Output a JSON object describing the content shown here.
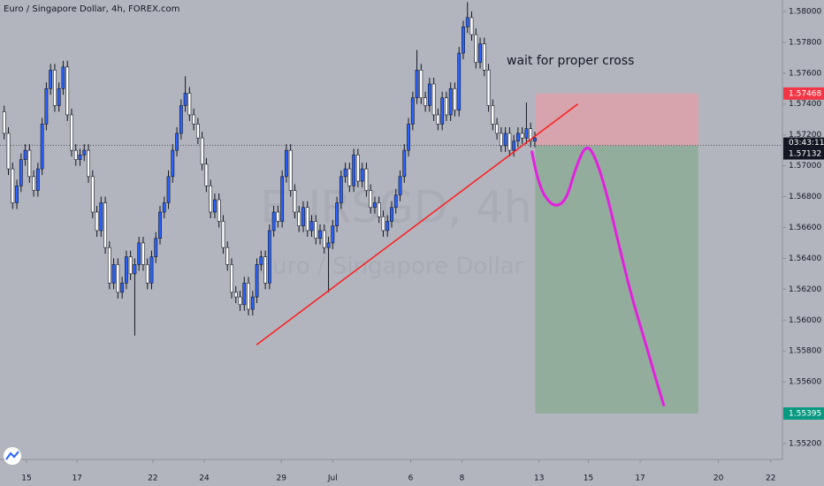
{
  "chart_data": {
    "type": "candlestick",
    "title": "Euro / Singapore Dollar, 4h, FOREX.com",
    "watermark": "EURSGD, 4h",
    "watermark_subtitle": "Euro / Singapore Dollar",
    "annotation": "wait for proper cross",
    "countdown": "03:43:11",
    "up_color": "#2962ff",
    "down_color": "#ffffff",
    "xlim": [
      -1,
      185
    ],
    "ylim": [
      1.55097,
      1.58074
    ],
    "xticks": [
      {
        "value": 5.3,
        "label": "15"
      },
      {
        "value": 17.3,
        "label": "17"
      },
      {
        "value": 35.3,
        "label": "22"
      },
      {
        "value": 47.5,
        "label": "24"
      },
      {
        "value": 65.8,
        "label": "29"
      },
      {
        "value": 78,
        "label": "Jul"
      },
      {
        "value": 96.5,
        "label": "6"
      },
      {
        "value": 108.7,
        "label": "8"
      },
      {
        "value": 127,
        "label": "13"
      },
      {
        "value": 138.7,
        "label": "15"
      },
      {
        "value": 151,
        "label": "17"
      },
      {
        "value": 169.6,
        "label": "20"
      },
      {
        "value": 182,
        "label": "22"
      }
    ],
    "yticks": [
      {
        "value": 1.552,
        "label": "1.55200"
      },
      {
        "value": 1.554,
        "label": "1.55400"
      },
      {
        "value": 1.556,
        "label": "1.55600"
      },
      {
        "value": 1.558,
        "label": "1.55800"
      },
      {
        "value": 1.56,
        "label": "1.56000"
      },
      {
        "value": 1.562,
        "label": "1.56200"
      },
      {
        "value": 1.564,
        "label": "1.56400"
      },
      {
        "value": 1.566,
        "label": "1.56600"
      },
      {
        "value": 1.568,
        "label": "1.56800"
      },
      {
        "value": 1.57,
        "label": "1.57000"
      },
      {
        "value": 1.572,
        "label": "1.57200"
      },
      {
        "value": 1.574,
        "label": "1.57400"
      },
      {
        "value": 1.576,
        "label": "1.57600"
      },
      {
        "value": 1.578,
        "label": "1.57800"
      },
      {
        "value": 1.58,
        "label": "1.58000"
      }
    ],
    "open": [
      1.5735,
      1.5721,
      1.5698,
      1.5676,
      1.5687,
      1.5704,
      1.571,
      1.5693,
      1.5684,
      1.5698,
      1.5727,
      1.575,
      1.5762,
      1.5739,
      1.575,
      1.5764,
      1.5733,
      1.571,
      1.5704,
      1.5707,
      1.571,
      1.5693,
      1.567,
      1.5658,
      1.5676,
      1.5647,
      1.5624,
      1.5636,
      1.5618,
      1.5624,
      1.5641,
      1.563,
      1.5636,
      1.565,
      1.5636,
      1.5624,
      1.5641,
      1.5653,
      1.567,
      1.5676,
      1.5693,
      1.571,
      1.5721,
      1.5739,
      1.5747,
      1.5733,
      1.5727,
      1.5718,
      1.5701,
      1.5687,
      1.567,
      1.5678,
      1.5664,
      1.5647,
      1.5636,
      1.5618,
      1.5615,
      1.561,
      1.5624,
      1.5607,
      1.5615,
      1.5636,
      1.5641,
      1.5624,
      1.5658,
      1.567,
      1.5664,
      1.5693,
      1.571,
      1.5684,
      1.567,
      1.5661,
      1.5673,
      1.5658,
      1.5664,
      1.5653,
      1.5658,
      1.5647,
      1.565,
      1.5661,
      1.5676,
      1.5693,
      1.5698,
      1.5687,
      1.5707,
      1.569,
      1.5698,
      1.5684,
      1.5673,
      1.5676,
      1.5667,
      1.5658,
      1.5664,
      1.5673,
      1.5681,
      1.5693,
      1.571,
      1.5727,
      1.5744,
      1.5762,
      1.5744,
      1.5739,
      1.5753,
      1.5733,
      1.5727,
      1.5744,
      1.5733,
      1.575,
      1.5736,
      1.5773,
      1.579,
      1.5796,
      1.5785,
      1.5767,
      1.5779,
      1.5762,
      1.5739,
      1.5727,
      1.5721,
      1.5713,
      1.5721,
      1.571,
      1.5716,
      1.5721,
      1.5718,
      1.5724,
      1.5716
    ],
    "high": [
      1.5739,
      1.5725,
      1.5702,
      1.5691,
      1.5708,
      1.5714,
      1.5714,
      1.5697,
      1.5702,
      1.5731,
      1.5754,
      1.5766,
      1.5766,
      1.5754,
      1.5768,
      1.5768,
      1.5737,
      1.5714,
      1.5711,
      1.5714,
      1.5714,
      1.5697,
      1.5674,
      1.568,
      1.568,
      1.5651,
      1.564,
      1.564,
      1.5628,
      1.5645,
      1.5645,
      1.564,
      1.5654,
      1.5654,
      1.564,
      1.5645,
      1.5657,
      1.5674,
      1.568,
      1.5697,
      1.5714,
      1.5725,
      1.5743,
      1.5758,
      1.5751,
      1.5737,
      1.5731,
      1.5722,
      1.5705,
      1.5691,
      1.5682,
      1.5682,
      1.5668,
      1.5651,
      1.564,
      1.5622,
      1.5619,
      1.5628,
      1.5628,
      1.5619,
      1.564,
      1.5645,
      1.5645,
      1.5662,
      1.5674,
      1.5674,
      1.5697,
      1.5714,
      1.5714,
      1.5688,
      1.5674,
      1.5677,
      1.5677,
      1.5668,
      1.5668,
      1.5662,
      1.5662,
      1.5654,
      1.5665,
      1.568,
      1.5697,
      1.5702,
      1.5702,
      1.5711,
      1.5711,
      1.5702,
      1.5702,
      1.5688,
      1.568,
      1.568,
      1.5671,
      1.5668,
      1.5677,
      1.5685,
      1.5697,
      1.5714,
      1.5731,
      1.5748,
      1.5775,
      1.5766,
      1.5748,
      1.5757,
      1.5757,
      1.5737,
      1.5748,
      1.5748,
      1.5754,
      1.5754,
      1.5777,
      1.5794,
      1.5806,
      1.58,
      1.5789,
      1.5783,
      1.5783,
      1.5766,
      1.5743,
      1.5731,
      1.5725,
      1.5725,
      1.5725,
      1.572,
      1.5725,
      1.5725,
      1.5741,
      1.5728,
      1.5722
    ],
    "low": [
      1.5717,
      1.5694,
      1.5672,
      1.5672,
      1.5683,
      1.57,
      1.5689,
      1.568,
      1.568,
      1.5694,
      1.5723,
      1.5746,
      1.5735,
      1.5735,
      1.5746,
      1.5729,
      1.5706,
      1.57,
      1.57,
      1.5703,
      1.5689,
      1.5666,
      1.5654,
      1.5654,
      1.5643,
      1.562,
      1.562,
      1.5614,
      1.5614,
      1.562,
      1.5626,
      1.559,
      1.5632,
      1.5632,
      1.562,
      1.562,
      1.5637,
      1.5649,
      1.5666,
      1.5672,
      1.5689,
      1.5706,
      1.5717,
      1.5735,
      1.5729,
      1.5723,
      1.5714,
      1.5697,
      1.5683,
      1.5666,
      1.5666,
      1.566,
      1.5643,
      1.5632,
      1.5614,
      1.5611,
      1.5606,
      1.5606,
      1.5603,
      1.5603,
      1.5611,
      1.5632,
      1.562,
      1.562,
      1.5654,
      1.566,
      1.566,
      1.5689,
      1.568,
      1.5666,
      1.5657,
      1.5657,
      1.5654,
      1.5654,
      1.5649,
      1.5649,
      1.5643,
      1.5618,
      1.5646,
      1.5657,
      1.5672,
      1.5689,
      1.5683,
      1.5683,
      1.5686,
      1.5686,
      1.568,
      1.5669,
      1.5669,
      1.5663,
      1.5654,
      1.5654,
      1.566,
      1.5669,
      1.5677,
      1.5689,
      1.5706,
      1.5723,
      1.574,
      1.574,
      1.5735,
      1.5735,
      1.5729,
      1.5723,
      1.5723,
      1.5729,
      1.5729,
      1.5732,
      1.5732,
      1.5769,
      1.5786,
      1.5781,
      1.5763,
      1.5763,
      1.5758,
      1.5735,
      1.5723,
      1.5717,
      1.5709,
      1.5709,
      1.5706,
      1.5706,
      1.5712,
      1.5714,
      1.5714,
      1.5712,
      1.5712
    ],
    "close": [
      1.5721,
      1.5698,
      1.5676,
      1.5687,
      1.5704,
      1.571,
      1.5693,
      1.5684,
      1.5698,
      1.5727,
      1.575,
      1.5762,
      1.5739,
      1.575,
      1.5764,
      1.5733,
      1.571,
      1.5704,
      1.5707,
      1.571,
      1.5693,
      1.567,
      1.5658,
      1.5676,
      1.5647,
      1.5624,
      1.5636,
      1.5618,
      1.5624,
      1.5641,
      1.563,
      1.5636,
      1.565,
      1.5636,
      1.5624,
      1.5641,
      1.5653,
      1.567,
      1.5676,
      1.5693,
      1.571,
      1.5721,
      1.5739,
      1.5747,
      1.5733,
      1.5727,
      1.5718,
      1.5701,
      1.5687,
      1.567,
      1.5678,
      1.5664,
      1.5647,
      1.5636,
      1.5618,
      1.5615,
      1.561,
      1.5624,
      1.5607,
      1.5615,
      1.5636,
      1.5641,
      1.5624,
      1.5658,
      1.567,
      1.5664,
      1.5693,
      1.571,
      1.5684,
      1.567,
      1.5661,
      1.5673,
      1.5658,
      1.5664,
      1.5653,
      1.5658,
      1.5647,
      1.565,
      1.5661,
      1.5676,
      1.5693,
      1.5698,
      1.5687,
      1.5707,
      1.569,
      1.5698,
      1.5684,
      1.5673,
      1.5676,
      1.5667,
      1.5658,
      1.5664,
      1.5673,
      1.5681,
      1.5693,
      1.571,
      1.5727,
      1.5744,
      1.5762,
      1.5744,
      1.5739,
      1.5753,
      1.5733,
      1.5727,
      1.5744,
      1.5733,
      1.575,
      1.5736,
      1.5773,
      1.579,
      1.5796,
      1.5785,
      1.5767,
      1.5779,
      1.5762,
      1.5739,
      1.5727,
      1.5721,
      1.5713,
      1.5721,
      1.571,
      1.5716,
      1.5721,
      1.5718,
      1.5724,
      1.5716,
      1.5718
    ],
    "last_price": {
      "value": 1.57132,
      "color": "#131722"
    },
    "price_labels": [
      {
        "value": 1.57468,
        "color": "#f23645"
      },
      {
        "value": 1.55395,
        "color": "#089981"
      }
    ],
    "position": {
      "x": [
        126.1,
        164.8
      ],
      "stop": 1.57468,
      "entry": 1.5713,
      "target": 1.55395,
      "loss_color": "#d7a3ac",
      "profit_color": "#92ad9c"
    },
    "trendline": {
      "color": "#ff1a1a",
      "x": [
        59.9,
        136.2
      ],
      "y": [
        1.5584,
        1.574
      ]
    },
    "drawing": {
      "color": "#e51ee0",
      "x": [
        125.3,
        126.5,
        128.2,
        130.9,
        133.5,
        135.6,
        138.1,
        140.2,
        142.9,
        146.1,
        149.2,
        152.4,
        154.5,
        156.6
      ],
      "y": [
        1.5709,
        1.5693,
        1.568,
        1.5673,
        1.5678,
        1.5698,
        1.5714,
        1.5707,
        1.5684,
        1.5647,
        1.5613,
        1.5584,
        1.5564,
        1.5545
      ]
    }
  }
}
